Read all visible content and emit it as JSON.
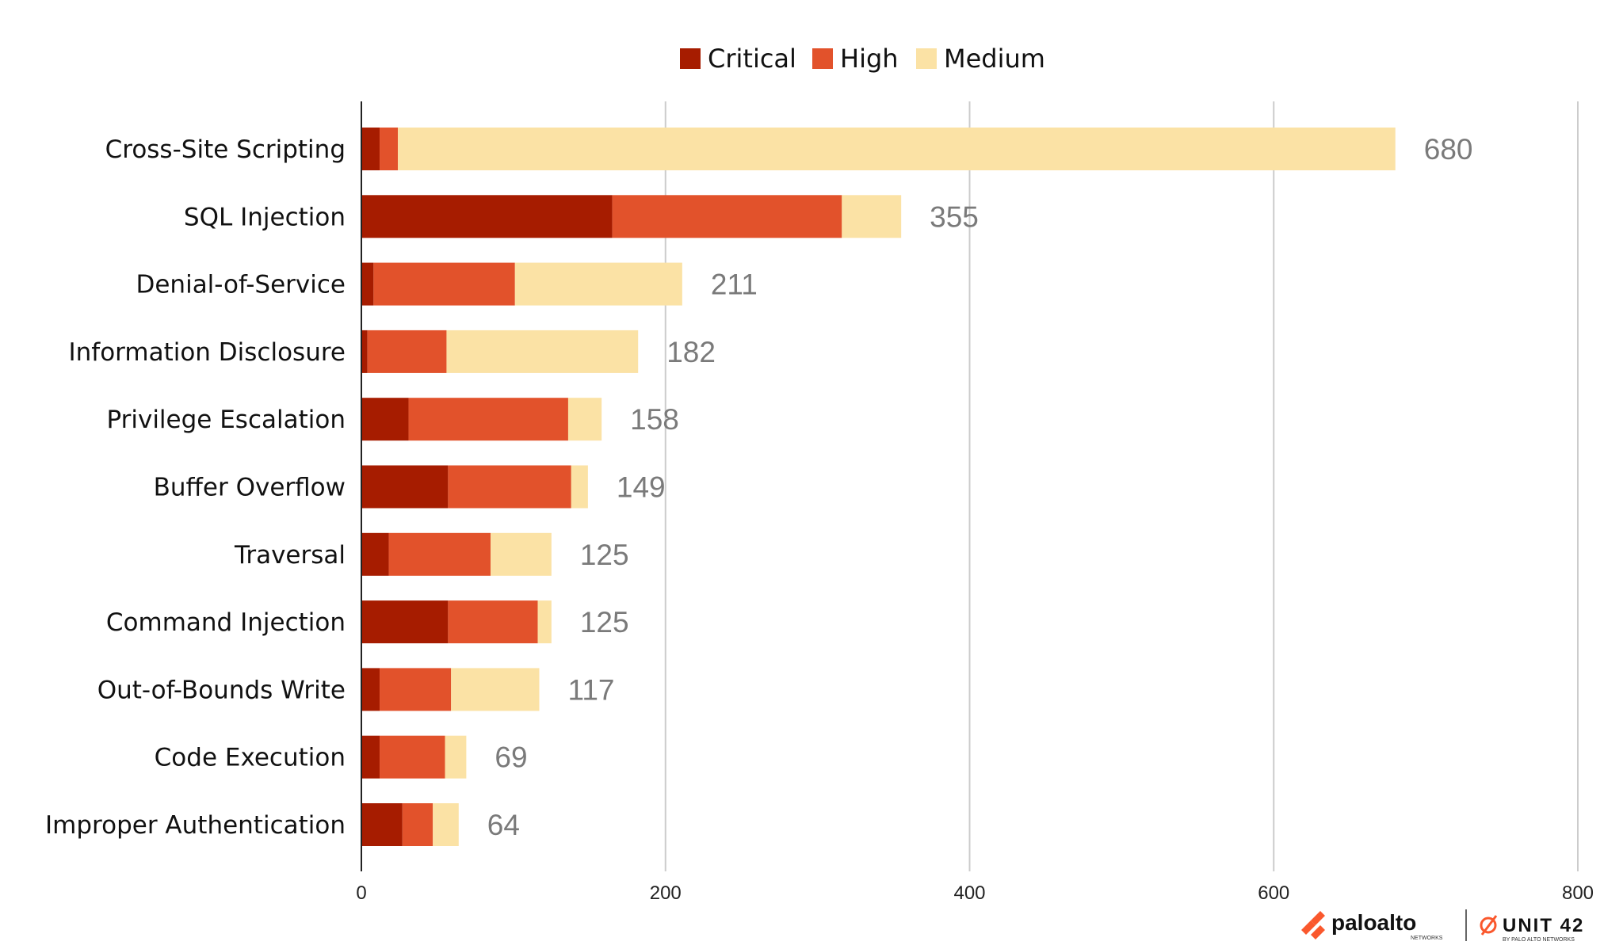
{
  "chart_data": {
    "type": "bar",
    "orientation": "horizontal",
    "stacked": true,
    "title": "",
    "xlabel": "",
    "ylabel": "",
    "xlim": [
      0,
      800
    ],
    "xticks": [
      0,
      200,
      400,
      600,
      800
    ],
    "grid": true,
    "legend_position": "top-center",
    "categories": [
      "Cross-Site Scripting",
      "SQL Injection",
      "Denial-of-Service",
      "Information Disclosure",
      "Privilege Escalation",
      "Buffer Overflow",
      "Traversal",
      "Command Injection",
      "Out-of-Bounds Write",
      "Code Execution",
      "Improper Authentication"
    ],
    "series": [
      {
        "name": "Critical",
        "color": "#a61c00",
        "values": [
          12,
          165,
          8,
          4,
          31,
          57,
          18,
          57,
          12,
          12,
          27
        ]
      },
      {
        "name": "High",
        "color": "#e2522b",
        "values": [
          12,
          151,
          93,
          52,
          105,
          81,
          67,
          59,
          47,
          43,
          20
        ]
      },
      {
        "name": "Medium",
        "color": "#fbe2a5",
        "values": [
          656,
          39,
          110,
          126,
          22,
          11,
          40,
          9,
          58,
          14,
          17
        ]
      }
    ],
    "totals": [
      680,
      355,
      211,
      182,
      158,
      149,
      125,
      125,
      117,
      69,
      64
    ]
  },
  "branding": {
    "logo_primary": "paloalto",
    "logo_primary_sub": "NETWORKS",
    "logo_secondary": "UNIT 42",
    "logo_secondary_sub": "BY PALO ALTO NETWORKS",
    "brand_color": "#fa582d"
  }
}
